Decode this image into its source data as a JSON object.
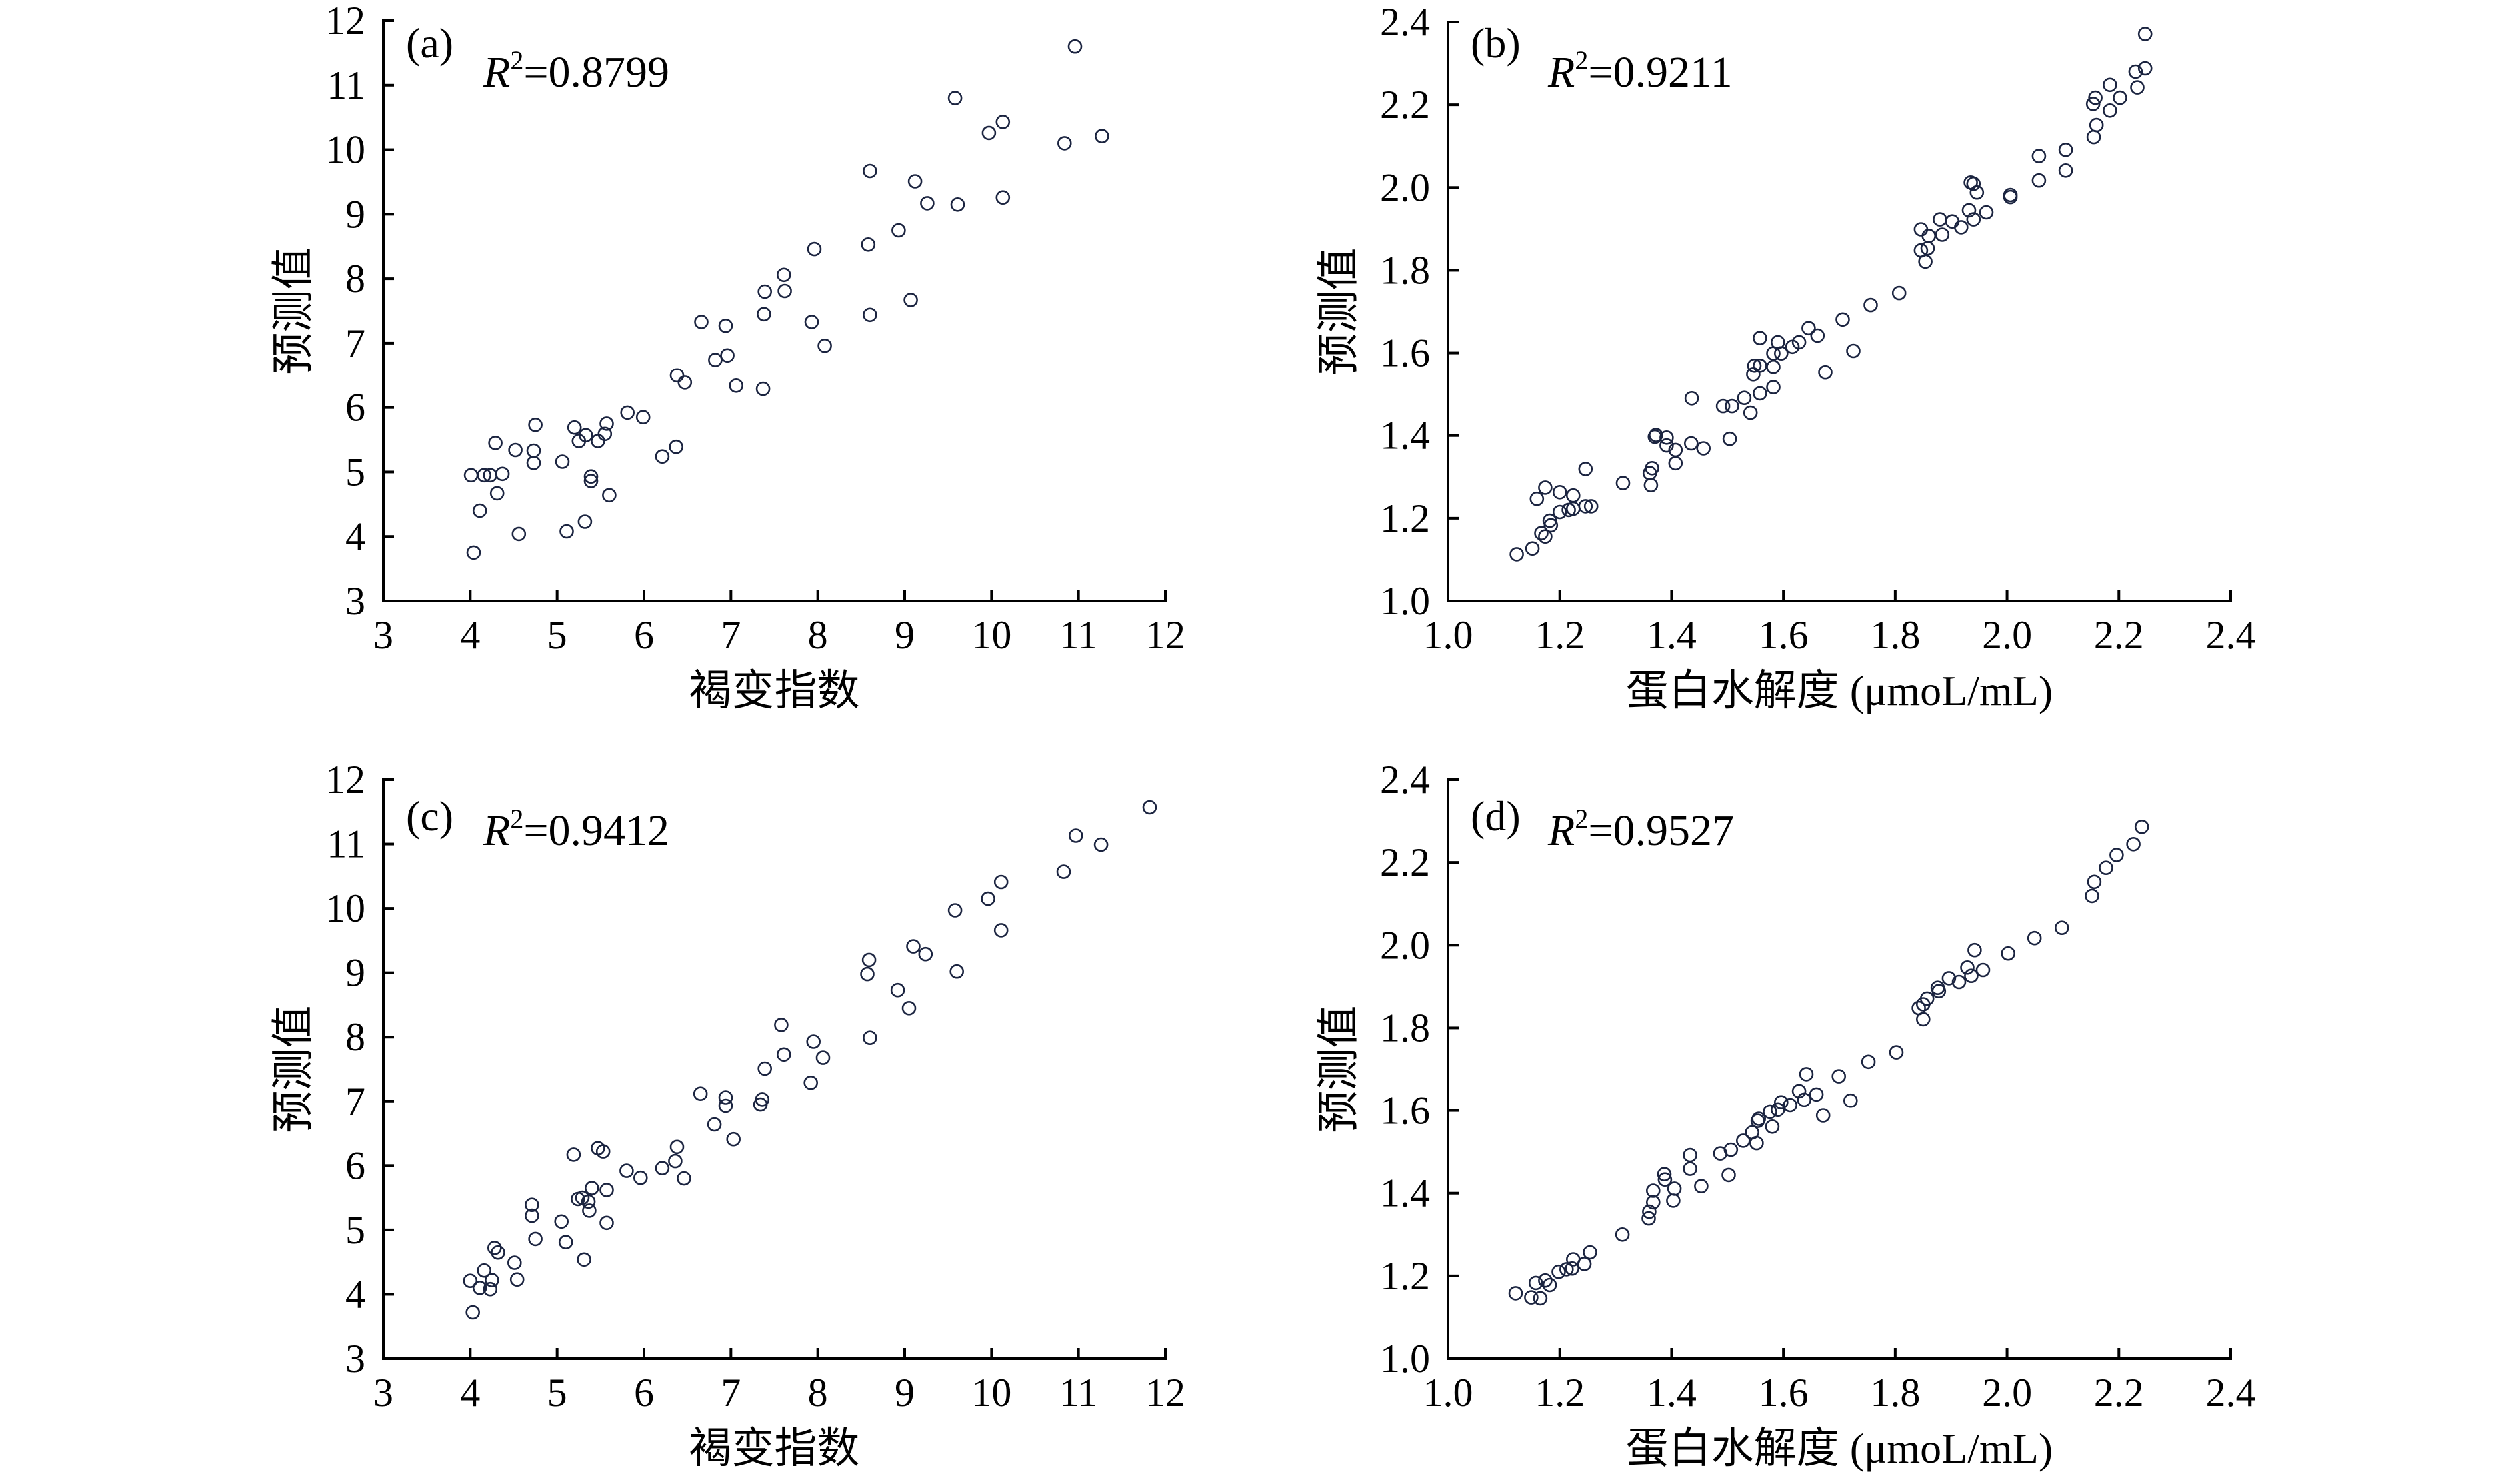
{
  "colors": {
    "marker": "#1b2440",
    "axis": "#000000",
    "background": "#ffffff"
  },
  "chart_data": [
    {
      "id": "a",
      "type": "scatter",
      "panel_label": "(a)",
      "annotation": {
        "symbol": "R",
        "superscript": "2",
        "value": "=0.8799"
      },
      "r_squared": 0.8799,
      "xlabel": "褐变指数",
      "ylabel": "预测值",
      "xlim": [
        3,
        12
      ],
      "ylim": [
        3,
        12
      ],
      "grid": false,
      "legend": "none",
      "xticks": {
        "values": [
          3,
          4,
          5,
          6,
          7,
          8,
          9,
          10,
          11,
          12
        ],
        "labels": [
          "3",
          "4",
          "5",
          "6",
          "7",
          "8",
          "9",
          "10",
          "11",
          "12"
        ]
      },
      "yticks": {
        "values": [
          3,
          4,
          5,
          6,
          7,
          8,
          9,
          10,
          11,
          12
        ],
        "labels": [
          "3",
          "4",
          "5",
          "6",
          "7",
          "8",
          "9",
          "10",
          "11",
          "12"
        ]
      },
      "points": [
        [
          10.96,
          11.6
        ],
        [
          9.58,
          10.8
        ],
        [
          10.13,
          10.43
        ],
        [
          9.97,
          10.26
        ],
        [
          10.84,
          10.1
        ],
        [
          11.27,
          10.21
        ],
        [
          8.6,
          9.67
        ],
        [
          9.12,
          9.51
        ],
        [
          9.26,
          9.17
        ],
        [
          9.61,
          9.15
        ],
        [
          10.13,
          9.26
        ],
        [
          8.93,
          8.75
        ],
        [
          8.58,
          8.53
        ],
        [
          7.96,
          8.46
        ],
        [
          7.61,
          8.06
        ],
        [
          7.62,
          7.81
        ],
        [
          7.39,
          7.8
        ],
        [
          9.07,
          7.67
        ],
        [
          7.38,
          7.45
        ],
        [
          8.6,
          7.44
        ],
        [
          6.66,
          7.33
        ],
        [
          6.94,
          7.27
        ],
        [
          7.93,
          7.33
        ],
        [
          8.08,
          6.96
        ],
        [
          6.96,
          6.81
        ],
        [
          6.82,
          6.74
        ],
        [
          6.38,
          6.5
        ],
        [
          6.47,
          6.39
        ],
        [
          7.06,
          6.34
        ],
        [
          7.37,
          6.29
        ],
        [
          5.81,
          5.92
        ],
        [
          5.99,
          5.85
        ],
        [
          4.75,
          5.73
        ],
        [
          5.2,
          5.69
        ],
        [
          5.57,
          5.75
        ],
        [
          5.33,
          5.57
        ],
        [
          5.55,
          5.59
        ],
        [
          5.25,
          5.48
        ],
        [
          5.47,
          5.48
        ],
        [
          4.29,
          5.45
        ],
        [
          4.52,
          5.34
        ],
        [
          4.73,
          5.33
        ],
        [
          4.73,
          5.14
        ],
        [
          5.06,
          5.16
        ],
        [
          6.21,
          5.24
        ],
        [
          6.37,
          5.39
        ],
        [
          4.01,
          4.95
        ],
        [
          4.16,
          4.95
        ],
        [
          4.23,
          4.95
        ],
        [
          4.37,
          4.97
        ],
        [
          5.39,
          4.93
        ],
        [
          5.39,
          4.86
        ],
        [
          4.31,
          4.67
        ],
        [
          5.6,
          4.64
        ],
        [
          4.11,
          4.4
        ],
        [
          5.32,
          4.23
        ],
        [
          4.56,
          4.04
        ],
        [
          5.11,
          4.08
        ],
        [
          4.04,
          3.75
        ]
      ]
    },
    {
      "id": "b",
      "type": "scatter",
      "panel_label": "(b)",
      "annotation": {
        "symbol": "R",
        "superscript": "2",
        "value": "=0.9211"
      },
      "r_squared": 0.9211,
      "xlabel": "蛋白水解度 (μmoL/mL)",
      "ylabel": "预测值",
      "xlim": [
        1.0,
        2.4
      ],
      "ylim": [
        1.0,
        2.4
      ],
      "grid": false,
      "legend": "none",
      "xticks": {
        "values": [
          1.0,
          1.2,
          1.4,
          1.6,
          1.8,
          2.0,
          2.2,
          2.4
        ],
        "labels": [
          "1.0",
          "1.2",
          "1.4",
          "1.6",
          "1.8",
          "2.0",
          "2.2",
          "2.4"
        ]
      },
      "yticks": {
        "values": [
          1.0,
          1.2,
          1.4,
          1.6,
          1.8,
          2.0,
          2.2,
          2.4
        ],
        "labels": [
          "1.0",
          "1.2",
          "1.4",
          "1.6",
          "1.8",
          "2.0",
          "2.2",
          "2.4"
        ]
      },
      "points": [
        [
          2.247,
          2.371
        ],
        [
          2.247,
          2.288
        ],
        [
          2.23,
          2.28
        ],
        [
          2.233,
          2.242
        ],
        [
          2.184,
          2.248
        ],
        [
          2.202,
          2.217
        ],
        [
          2.158,
          2.217
        ],
        [
          2.154,
          2.202
        ],
        [
          2.184,
          2.186
        ],
        [
          2.16,
          2.151
        ],
        [
          2.155,
          2.122
        ],
        [
          2.105,
          2.091
        ],
        [
          2.057,
          2.076
        ],
        [
          2.105,
          2.041
        ],
        [
          2.057,
          2.017
        ],
        [
          2.006,
          1.977
        ],
        [
          2.006,
          1.982
        ],
        [
          1.94,
          2.009
        ],
        [
          1.935,
          2.012
        ],
        [
          1.946,
          1.988
        ],
        [
          1.963,
          1.94
        ],
        [
          1.932,
          1.945
        ],
        [
          1.94,
          1.923
        ],
        [
          1.918,
          1.904
        ],
        [
          1.902,
          1.918
        ],
        [
          1.88,
          1.923
        ],
        [
          1.884,
          1.886
        ],
        [
          1.846,
          1.899
        ],
        [
          1.86,
          1.883
        ],
        [
          1.846,
          1.848
        ],
        [
          1.858,
          1.853
        ],
        [
          1.854,
          1.821
        ],
        [
          1.807,
          1.745
        ],
        [
          1.756,
          1.716
        ],
        [
          1.706,
          1.681
        ],
        [
          1.725,
          1.605
        ],
        [
          1.675,
          1.553
        ],
        [
          1.661,
          1.642
        ],
        [
          1.645,
          1.66
        ],
        [
          1.628,
          1.626
        ],
        [
          1.616,
          1.615
        ],
        [
          1.596,
          1.599
        ],
        [
          1.582,
          1.599
        ],
        [
          1.59,
          1.626
        ],
        [
          1.558,
          1.636
        ],
        [
          1.582,
          1.566
        ],
        [
          1.558,
          1.569
        ],
        [
          1.548,
          1.569
        ],
        [
          1.546,
          1.548
        ],
        [
          1.582,
          1.517
        ],
        [
          1.558,
          1.502
        ],
        [
          1.541,
          1.455
        ],
        [
          1.53,
          1.491
        ],
        [
          1.508,
          1.471
        ],
        [
          1.492,
          1.471
        ],
        [
          1.436,
          1.49
        ],
        [
          1.504,
          1.392
        ],
        [
          1.457,
          1.369
        ],
        [
          1.435,
          1.381
        ],
        [
          1.407,
          1.365
        ],
        [
          1.391,
          1.376
        ],
        [
          1.391,
          1.395
        ],
        [
          1.37,
          1.397
        ],
        [
          1.372,
          1.401
        ],
        [
          1.407,
          1.333
        ],
        [
          1.365,
          1.321
        ],
        [
          1.361,
          1.309
        ],
        [
          1.363,
          1.28
        ],
        [
          1.313,
          1.285
        ],
        [
          1.246,
          1.319
        ],
        [
          1.224,
          1.255
        ],
        [
          1.2,
          1.263
        ],
        [
          1.174,
          1.274
        ],
        [
          1.159,
          1.247
        ],
        [
          1.256,
          1.229
        ],
        [
          1.246,
          1.229
        ],
        [
          1.224,
          1.223
        ],
        [
          1.216,
          1.22
        ],
        [
          1.2,
          1.215
        ],
        [
          1.182,
          1.194
        ],
        [
          1.184,
          1.183
        ],
        [
          1.174,
          1.156
        ],
        [
          1.167,
          1.164
        ],
        [
          1.151,
          1.127
        ],
        [
          1.123,
          1.113
        ]
      ]
    },
    {
      "id": "c",
      "type": "scatter",
      "panel_label": "(c)",
      "annotation": {
        "symbol": "R",
        "superscript": "2",
        "value": "=0.9412"
      },
      "r_squared": 0.9412,
      "xlabel": "褐变指数",
      "ylabel": "预测值",
      "xlim": [
        3,
        12
      ],
      "ylim": [
        3,
        12
      ],
      "grid": false,
      "legend": "none",
      "xticks": {
        "values": [
          3,
          4,
          5,
          6,
          7,
          8,
          9,
          10,
          11,
          12
        ],
        "labels": [
          "3",
          "4",
          "5",
          "6",
          "7",
          "8",
          "9",
          "10",
          "11",
          "12"
        ]
      },
      "yticks": {
        "values": [
          3,
          4,
          5,
          6,
          7,
          8,
          9,
          10,
          11,
          12
        ],
        "labels": [
          "3",
          "4",
          "5",
          "6",
          "7",
          "8",
          "9",
          "10",
          "11",
          "12"
        ]
      },
      "points": [
        [
          11.82,
          11.57
        ],
        [
          10.97,
          11.13
        ],
        [
          11.26,
          10.99
        ],
        [
          10.83,
          10.57
        ],
        [
          10.11,
          10.41
        ],
        [
          9.96,
          10.15
        ],
        [
          9.58,
          9.97
        ],
        [
          10.11,
          9.66
        ],
        [
          9.1,
          9.41
        ],
        [
          9.24,
          9.29
        ],
        [
          8.59,
          9.2
        ],
        [
          8.57,
          8.98
        ],
        [
          9.6,
          9.02
        ],
        [
          8.92,
          8.73
        ],
        [
          9.05,
          8.45
        ],
        [
          7.58,
          8.19
        ],
        [
          8.6,
          7.99
        ],
        [
          7.95,
          7.93
        ],
        [
          7.61,
          7.73
        ],
        [
          7.39,
          7.51
        ],
        [
          8.06,
          7.68
        ],
        [
          7.92,
          7.29
        ],
        [
          6.65,
          7.12
        ],
        [
          6.94,
          7.06
        ],
        [
          6.94,
          6.93
        ],
        [
          7.36,
          7.03
        ],
        [
          7.34,
          6.95
        ],
        [
          6.81,
          6.64
        ],
        [
          7.03,
          6.41
        ],
        [
          6.38,
          6.29
        ],
        [
          5.47,
          6.27
        ],
        [
          5.53,
          6.22
        ],
        [
          5.19,
          6.17
        ],
        [
          6.36,
          6.07
        ],
        [
          6.21,
          5.96
        ],
        [
          5.8,
          5.92
        ],
        [
          5.96,
          5.81
        ],
        [
          6.46,
          5.8
        ],
        [
          5.4,
          5.65
        ],
        [
          5.57,
          5.62
        ],
        [
          5.29,
          5.5
        ],
        [
          5.24,
          5.48
        ],
        [
          5.36,
          5.44
        ],
        [
          5.37,
          5.3
        ],
        [
          4.71,
          5.39
        ],
        [
          4.71,
          5.22
        ],
        [
          5.05,
          5.13
        ],
        [
          5.57,
          5.11
        ],
        [
          4.75,
          4.86
        ],
        [
          5.1,
          4.81
        ],
        [
          4.28,
          4.72
        ],
        [
          4.32,
          4.65
        ],
        [
          4.51,
          4.49
        ],
        [
          5.31,
          4.54
        ],
        [
          4.16,
          4.37
        ],
        [
          4.25,
          4.22
        ],
        [
          4.0,
          4.21
        ],
        [
          4.54,
          4.23
        ],
        [
          4.11,
          4.1
        ],
        [
          4.23,
          4.08
        ],
        [
          4.03,
          3.72
        ]
      ]
    },
    {
      "id": "d",
      "type": "scatter",
      "panel_label": "(d)",
      "annotation": {
        "symbol": "R",
        "superscript": "2",
        "value": "=0.9527"
      },
      "r_squared": 0.9527,
      "xlabel": "蛋白水解度 (μmoL/mL)",
      "ylabel": "预测值",
      "xlim": [
        1.0,
        2.4
      ],
      "ylim": [
        1.0,
        2.4
      ],
      "grid": false,
      "legend": "none",
      "xticks": {
        "values": [
          1.0,
          1.2,
          1.4,
          1.6,
          1.8,
          2.0,
          2.2,
          2.4
        ],
        "labels": [
          "1.0",
          "1.2",
          "1.4",
          "1.6",
          "1.8",
          "2.0",
          "2.2",
          "2.4"
        ]
      },
      "yticks": {
        "values": [
          1.0,
          1.2,
          1.4,
          1.6,
          1.8,
          2.0,
          2.2,
          2.4
        ],
        "labels": [
          "1.0",
          "1.2",
          "1.4",
          "1.6",
          "1.8",
          "2.0",
          "2.2",
          "2.4"
        ]
      },
      "points": [
        [
          2.241,
          2.286
        ],
        [
          2.226,
          2.244
        ],
        [
          2.196,
          2.218
        ],
        [
          2.177,
          2.187
        ],
        [
          2.156,
          2.153
        ],
        [
          2.152,
          2.119
        ],
        [
          2.098,
          2.042
        ],
        [
          2.049,
          2.017
        ],
        [
          2.002,
          1.98
        ],
        [
          1.942,
          1.988
        ],
        [
          1.957,
          1.94
        ],
        [
          1.929,
          1.946
        ],
        [
          1.936,
          1.926
        ],
        [
          1.914,
          1.911
        ],
        [
          1.896,
          1.92
        ],
        [
          1.878,
          1.889
        ],
        [
          1.876,
          1.897
        ],
        [
          1.857,
          1.871
        ],
        [
          1.85,
          1.857
        ],
        [
          1.842,
          1.848
        ],
        [
          1.85,
          1.821
        ],
        [
          1.802,
          1.741
        ],
        [
          1.752,
          1.718
        ],
        [
          1.699,
          1.683
        ],
        [
          1.72,
          1.624
        ],
        [
          1.671,
          1.588
        ],
        [
          1.659,
          1.639
        ],
        [
          1.641,
          1.688
        ],
        [
          1.637,
          1.626
        ],
        [
          1.628,
          1.647
        ],
        [
          1.612,
          1.613
        ],
        [
          1.596,
          1.62
        ],
        [
          1.59,
          1.602
        ],
        [
          1.576,
          1.597
        ],
        [
          1.58,
          1.561
        ],
        [
          1.556,
          1.58
        ],
        [
          1.554,
          1.575
        ],
        [
          1.544,
          1.547
        ],
        [
          1.552,
          1.521
        ],
        [
          1.528,
          1.527
        ],
        [
          1.506,
          1.505
        ],
        [
          1.487,
          1.496
        ],
        [
          1.502,
          1.444
        ],
        [
          1.453,
          1.417
        ],
        [
          1.433,
          1.459
        ],
        [
          1.433,
          1.492
        ],
        [
          1.403,
          1.382
        ],
        [
          1.405,
          1.411
        ],
        [
          1.388,
          1.433
        ],
        [
          1.387,
          1.446
        ],
        [
          1.367,
          1.406
        ],
        [
          1.367,
          1.378
        ],
        [
          1.36,
          1.355
        ],
        [
          1.359,
          1.339
        ],
        [
          1.312,
          1.3
        ],
        [
          1.254,
          1.257
        ],
        [
          1.244,
          1.229
        ],
        [
          1.224,
          1.24
        ],
        [
          1.222,
          1.218
        ],
        [
          1.212,
          1.216
        ],
        [
          1.198,
          1.21
        ],
        [
          1.182,
          1.178
        ],
        [
          1.174,
          1.189
        ],
        [
          1.157,
          1.183
        ],
        [
          1.165,
          1.146
        ],
        [
          1.149,
          1.148
        ],
        [
          1.121,
          1.158
        ]
      ]
    }
  ]
}
